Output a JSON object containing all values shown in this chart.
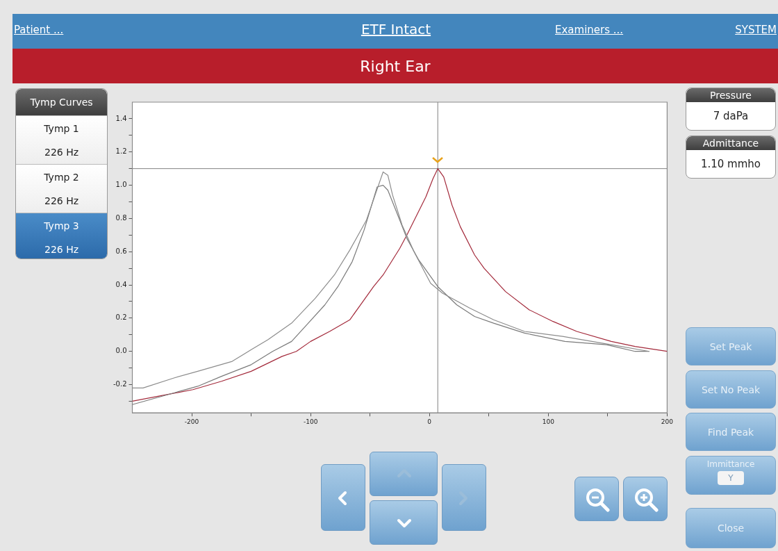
{
  "chart_data": {
    "type": "line",
    "title": "ETF Intact",
    "subtitle": "Right Ear",
    "xlim": [
      -250,
      200
    ],
    "ylim": [
      -0.37,
      1.5
    ],
    "xticks": [
      -200,
      {
        "value": -150,
        "label": null
      },
      -100,
      {
        "value": -50,
        "label": null
      },
      0,
      {
        "value": 50,
        "label": null
      },
      100,
      {
        "value": 150,
        "label": null
      },
      200
    ],
    "yticks": [
      {
        "value": -0.3,
        "label": null
      },
      -0.2,
      {
        "value": -0.1,
        "label": null
      },
      {
        "value": 0,
        "label": "0.0"
      },
      {
        "value": 0.1,
        "label": null
      },
      0.2,
      {
        "value": 0.3,
        "label": null
      },
      0.4,
      {
        "value": 0.5,
        "label": null
      },
      0.6,
      {
        "value": 0.7,
        "label": null
      },
      0.8,
      {
        "value": 0.9,
        "label": null
      },
      {
        "value": 1,
        "label": "1.0"
      },
      {
        "value": 1.1,
        "label": null
      },
      1.2,
      {
        "value": 1.3,
        "label": null
      },
      1.4
    ],
    "legend": false,
    "marker": "none",
    "line_style": "solid",
    "series": [
      {
        "color": "#8c8c8c",
        "x": [
          -250,
          -241,
          -215,
          -195,
          -166,
          -150,
          -136,
          -116,
          -96,
          -80,
          -67,
          -53,
          -39,
          -35,
          -31,
          -23,
          -13,
          1,
          11,
          34,
          54,
          80,
          112,
          153,
          185
        ],
        "values": [
          -0.22,
          -0.22,
          -0.16,
          -0.12,
          -0.06,
          0.01,
          0.07,
          0.17,
          0.32,
          0.46,
          0.61,
          0.79,
          1.08,
          1.06,
          0.94,
          0.76,
          0.6,
          0.41,
          0.35,
          0.26,
          0.19,
          0.12,
          0.09,
          0.04,
          0.0
        ]
      },
      {
        "color": "#7a7a7a",
        "x": [
          -250,
          -215,
          -195,
          -175,
          -150,
          -132,
          -116,
          -102,
          -88,
          -77,
          -65,
          -55,
          -44,
          -39,
          -35,
          -25,
          -19,
          -9,
          7,
          23,
          38,
          54,
          80,
          114,
          149,
          173,
          185
        ],
        "values": [
          -0.32,
          -0.25,
          -0.21,
          -0.15,
          -0.08,
          0.0,
          0.06,
          0.17,
          0.28,
          0.39,
          0.54,
          0.73,
          0.99,
          1.0,
          0.97,
          0.79,
          0.68,
          0.55,
          0.39,
          0.28,
          0.21,
          0.17,
          0.11,
          0.06,
          0.04,
          0.0,
          0.0
        ]
      },
      {
        "color": "#a3293a",
        "x": [
          -250,
          -199,
          -175,
          -150,
          -124,
          -112,
          -100,
          -84,
          -67,
          -57,
          -47,
          -39,
          -25,
          -19,
          -3,
          3,
          7,
          12,
          19,
          26,
          38,
          46,
          64,
          84,
          104,
          124,
          153,
          173,
          200
        ],
        "values": [
          -0.3,
          -0.23,
          -0.18,
          -0.12,
          -0.03,
          0.0,
          0.06,
          0.12,
          0.19,
          0.29,
          0.39,
          0.46,
          0.62,
          0.7,
          0.93,
          1.04,
          1.1,
          1.05,
          0.88,
          0.75,
          0.58,
          0.5,
          0.36,
          0.25,
          0.18,
          0.12,
          0.06,
          0.03,
          0.0
        ]
      }
    ],
    "ref_lines": [
      {
        "axis": "x",
        "value": 7,
        "color": "#808080"
      },
      {
        "axis": "y",
        "value": 1.1,
        "color": "#808080"
      }
    ],
    "annotations": [
      "Patient ...",
      "Examiners ...",
      "SYSTEM",
      "Tymp Curves",
      "Tymp 1",
      "226 Hz",
      "Tymp 2",
      "226 Hz",
      "Tymp 3",
      "226 Hz",
      "Pressure",
      "7 daPa",
      "Admittance",
      "1.10 mmho",
      "Set Peak",
      "Set No Peak",
      "Find Peak",
      "Immittance",
      "Y",
      "Close"
    ]
  }
}
